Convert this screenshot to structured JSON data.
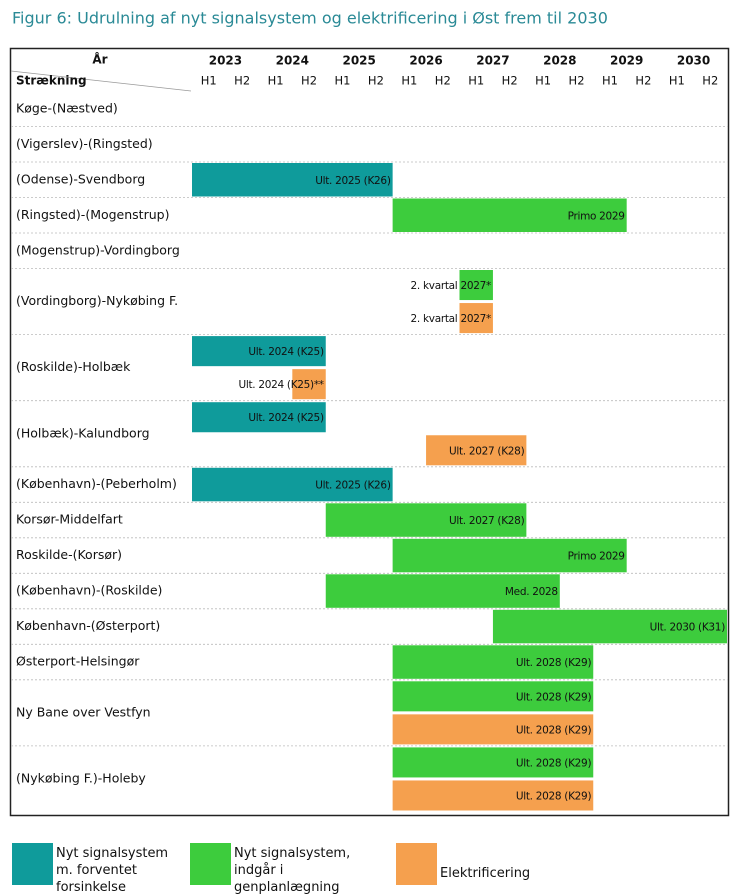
{
  "chart_data": {
    "type": "gantt",
    "title": "Figur 6: Udrulning af nyt signalsystem og elektrificering i Øst frem til 2030",
    "x_header": "År",
    "row_header": "Strækning",
    "xlim": [
      2023,
      2031
    ],
    "xticks": [
      2023,
      2024,
      2025,
      2026,
      2027,
      2028,
      2029,
      2030
    ],
    "halves": [
      "H1",
      "H2"
    ],
    "series": [
      {
        "name": "Nyt signalsystem m. forventet forsinkelse",
        "color": "#0f9b9b"
      },
      {
        "name": "Nyt signalsystem, indgår i genplanlægning",
        "color": "#3dcc3d"
      },
      {
        "name": "Elektrificering",
        "color": "#f5a04e"
      }
    ],
    "rows": [
      {
        "name": "Køge-(Næstved)",
        "bars": []
      },
      {
        "name": "(Vigerslev)-(Ringsted)",
        "bars": []
      },
      {
        "name": "(Odense)-Svendborg",
        "bars": [
          {
            "series": 0,
            "start": 2023,
            "end": 2026,
            "label": "Ult. 2025 (K26)"
          }
        ]
      },
      {
        "name": "(Ringsted)-(Mogenstrup)",
        "bars": [
          {
            "series": 1,
            "start": 2026,
            "end": 2029.5,
            "label": "Primo 2029"
          }
        ]
      },
      {
        "name": "(Mogenstrup)-Vordingborg",
        "bars": []
      },
      {
        "name": "(Vordingborg)-Nykøbing F.",
        "bars": [
          {
            "series": 1,
            "start": 2027,
            "end": 2027.5,
            "label": "2. kvartal 2027*"
          },
          {
            "series": 2,
            "start": 2027,
            "end": 2027.5,
            "label": "2. kvartal 2027*"
          }
        ]
      },
      {
        "name": "(Roskilde)-Holbæk",
        "bars": [
          {
            "series": 0,
            "start": 2023,
            "end": 2025,
            "label": "Ult. 2024 (K25)"
          },
          {
            "series": 2,
            "start": 2024.5,
            "end": 2025,
            "label": "Ult. 2024 (K25)**"
          }
        ]
      },
      {
        "name": "(Holbæk)-Kalundborg",
        "bars": [
          {
            "series": 0,
            "start": 2023,
            "end": 2025,
            "label": "Ult. 2024 (K25)"
          },
          {
            "series": 2,
            "start": 2026.5,
            "end": 2028,
            "label": "Ult. 2027 (K28)"
          }
        ]
      },
      {
        "name": "(København)-(Peberholm)",
        "bars": [
          {
            "series": 0,
            "start": 2023,
            "end": 2026,
            "label": "Ult. 2025 (K26)"
          }
        ]
      },
      {
        "name": "Korsør-Middelfart",
        "bars": [
          {
            "series": 1,
            "start": 2025,
            "end": 2028,
            "label": "Ult. 2027 (K28)"
          }
        ]
      },
      {
        "name": "Roskilde-(Korsør)",
        "bars": [
          {
            "series": 1,
            "start": 2026,
            "end": 2029.5,
            "label": "Primo 2029"
          }
        ]
      },
      {
        "name": "(København)-(Roskilde)",
        "bars": [
          {
            "series": 1,
            "start": 2025,
            "end": 2028.5,
            "label": "Med. 2028"
          }
        ]
      },
      {
        "name": "København-(Østerport)",
        "bars": [
          {
            "series": 1,
            "start": 2027.5,
            "end": 2031,
            "label": "Ult. 2030 (K31)"
          }
        ]
      },
      {
        "name": "Østerport-Helsingør",
        "bars": [
          {
            "series": 1,
            "start": 2026,
            "end": 2029,
            "label": "Ult. 2028 (K29)"
          }
        ]
      },
      {
        "name": "Ny Bane over Vestfyn",
        "bars": [
          {
            "series": 1,
            "start": 2026,
            "end": 2029,
            "label": "Ult. 2028 (K29)"
          },
          {
            "series": 2,
            "start": 2026,
            "end": 2029,
            "label": "Ult. 2028 (K29)"
          }
        ]
      },
      {
        "name": "(Nykøbing F.)-Holeby",
        "bars": [
          {
            "series": 1,
            "start": 2026,
            "end": 2029,
            "label": "Ult. 2028 (K29)"
          },
          {
            "series": 2,
            "start": 2026,
            "end": 2029,
            "label": "Ult. 2028 (K29)"
          }
        ]
      }
    ]
  }
}
